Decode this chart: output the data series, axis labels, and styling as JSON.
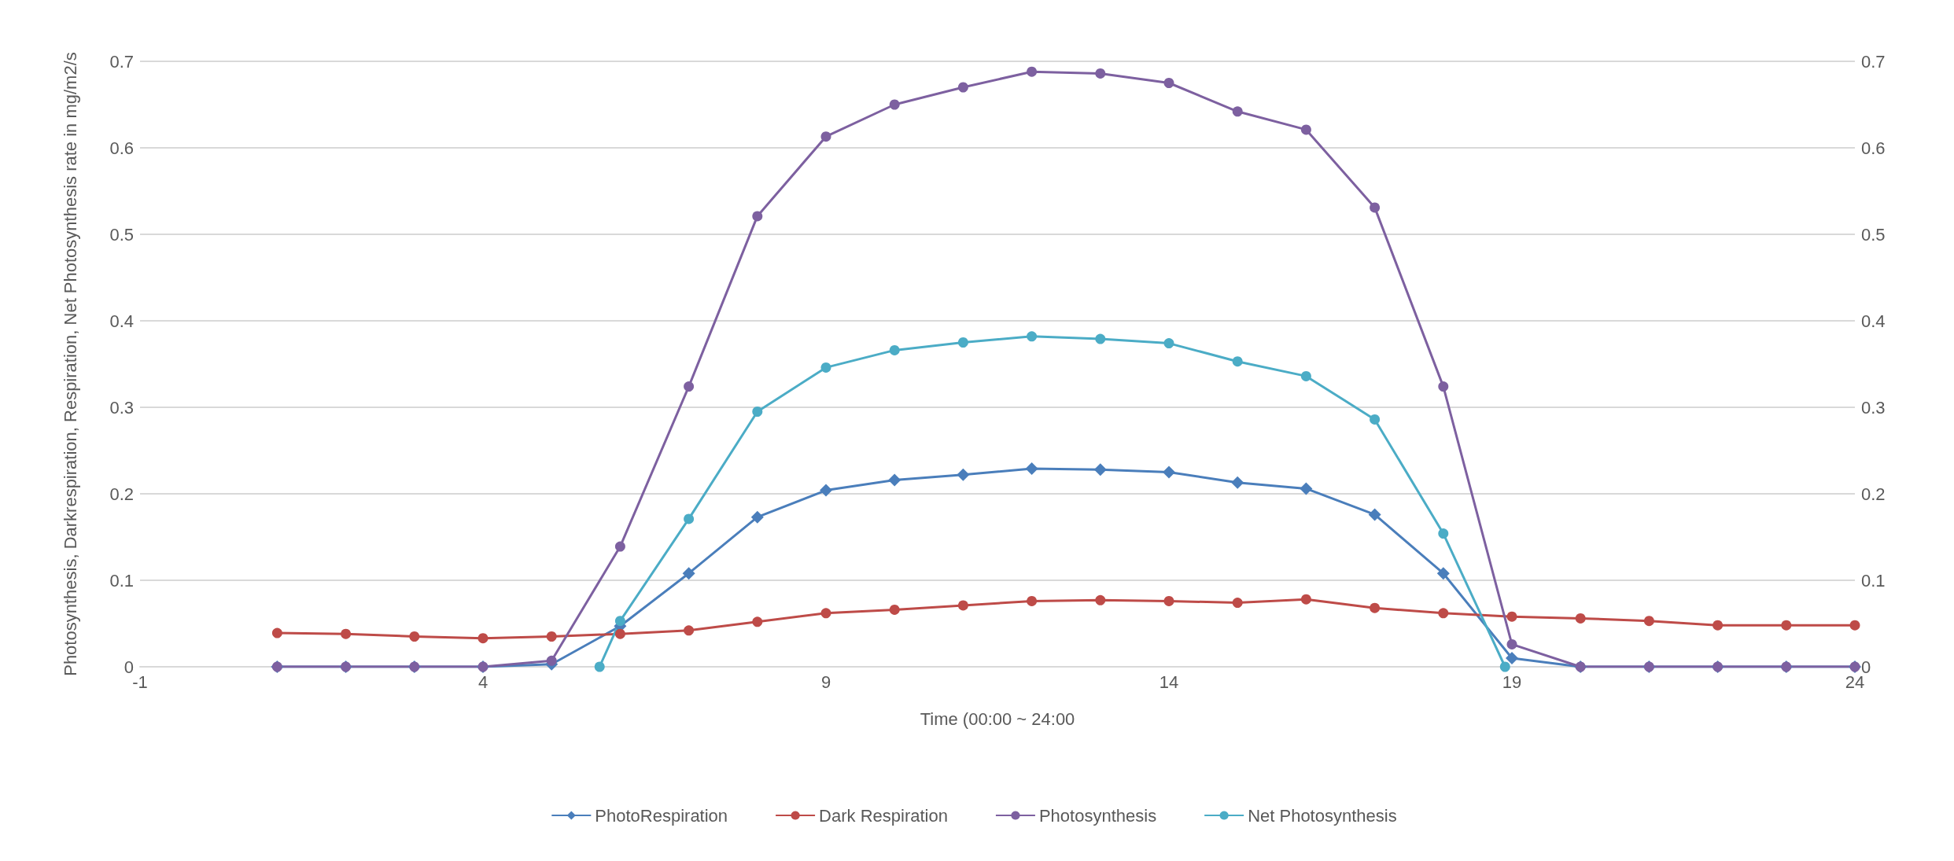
{
  "chart_data": {
    "type": "line",
    "xlabel": "Time (00:00 ~ 24:00",
    "ylabel": "Photosynthesis, Darkrespiration, Respiration, Net Photosynthesis rate in mg/m2/s",
    "x": [
      1,
      2,
      3,
      4,
      5,
      6,
      7,
      8,
      9,
      10,
      11,
      12,
      13,
      14,
      15,
      16,
      17,
      18,
      19,
      20,
      21,
      22,
      23,
      24
    ],
    "series": [
      {
        "name": "PhotoRespiration",
        "color": "#4a7ebb",
        "marker": "diamond",
        "values": [
          0,
          0,
          0,
          0,
          0.003,
          0.047,
          0.108,
          0.173,
          0.204,
          0.216,
          0.222,
          0.229,
          0.228,
          0.225,
          0.213,
          0.206,
          0.176,
          0.108,
          0.01,
          0,
          0,
          0,
          0,
          0
        ]
      },
      {
        "name": "Dark Respiration",
        "color": "#be4b48",
        "marker": "circle",
        "values": [
          0.039,
          0.038,
          0.035,
          0.033,
          0.035,
          0.038,
          0.042,
          0.052,
          0.062,
          0.066,
          0.071,
          0.076,
          0.077,
          0.076,
          0.074,
          0.078,
          0.068,
          0.062,
          0.058,
          0.056,
          0.053,
          0.048,
          0.048,
          0.048
        ]
      },
      {
        "name": "Photosynthesis",
        "color": "#7d60a0",
        "marker": "circle",
        "values": [
          0,
          0,
          0,
          0,
          0.007,
          0.139,
          0.324,
          0.521,
          0.613,
          0.65,
          0.67,
          0.688,
          0.686,
          0.675,
          0.642,
          0.621,
          0.531,
          0.324,
          0.026,
          0,
          0,
          0,
          0,
          0
        ]
      },
      {
        "name": "Net Photosynthesis",
        "color": "#4bacc6",
        "marker": "circle",
        "x": [
          5.7,
          6,
          7,
          8,
          9,
          10,
          11,
          12,
          13,
          14,
          15,
          16,
          17,
          18,
          18.9
        ],
        "values": [
          0,
          0.053,
          0.171,
          0.295,
          0.346,
          0.366,
          0.375,
          0.382,
          0.379,
          0.374,
          0.353,
          0.336,
          0.286,
          0.154,
          0
        ]
      }
    ],
    "xlim": [
      -1,
      24
    ],
    "xticks": [
      -1,
      4,
      9,
      14,
      19,
      24
    ],
    "ylim": [
      0,
      0.7
    ],
    "yticks": [
      0,
      0.1,
      0.2,
      0.3,
      0.4,
      0.5,
      0.6,
      0.7
    ],
    "y2lim": [
      0,
      0.7
    ],
    "y2ticks": [
      0,
      0.1,
      0.2,
      0.3,
      0.4,
      0.5,
      0.6,
      0.7
    ],
    "grid": "y",
    "legend": "bottom",
    "line_style": "solid"
  }
}
